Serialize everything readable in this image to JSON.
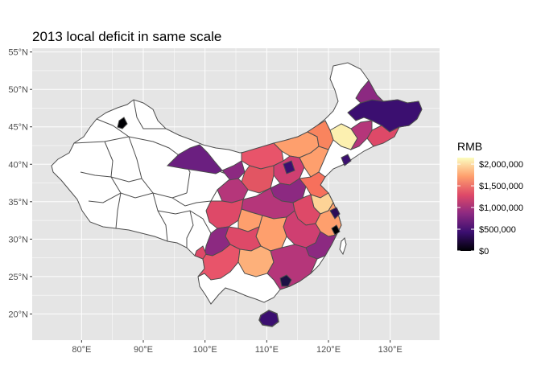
{
  "title": "2013 local deficit in same scale",
  "map": {
    "x_axis_labels": [
      "80°E",
      "90°E",
      "100°E",
      "110°E",
      "120°E",
      "130°E"
    ],
    "y_axis_labels": [
      "55°N",
      "50°N",
      "45°N",
      "40°N",
      "35°N",
      "30°N",
      "25°N",
      "20°N"
    ],
    "lon_ticks": [
      80,
      90,
      100,
      110,
      120,
      130
    ],
    "lat_ticks": [
      55,
      50,
      45,
      40,
      35,
      30,
      25,
      20
    ],
    "lon_range": [
      72,
      138
    ],
    "lat_range": [
      16.5,
      55.5
    ],
    "panel_background": "#e5e5e5",
    "gridline_color": "#ffffff",
    "border_color": "#4d4d4d",
    "missing_fill": "#ffffff"
  },
  "legend": {
    "title": "RMB",
    "labels": [
      "$2,000,000",
      "$1,500,000",
      "$1,000,000",
      "$500,000",
      "$0"
    ],
    "values": [
      2000000,
      1500000,
      1000000,
      500000,
      0
    ],
    "range": [
      0,
      2150000
    ],
    "colormap": "magma",
    "color_stops": [
      "#000004",
      "#3b0f70",
      "#8c2981",
      "#de4968",
      "#fe9f6d",
      "#fcfdbf"
    ]
  }
}
